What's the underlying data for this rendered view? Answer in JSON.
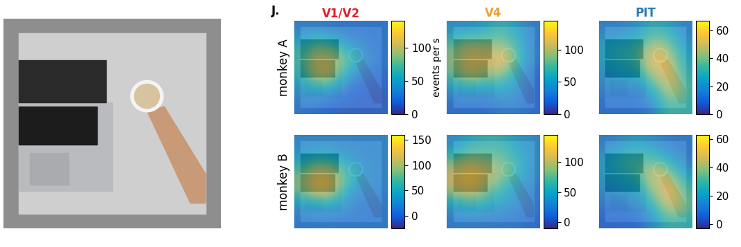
{
  "panel_label": "J.",
  "chart_data": [
    {
      "type": "heatmap",
      "title": "V1/V2",
      "color": "#e0202a",
      "ylabel": "monkey A",
      "tick_labels": false,
      "colorbar_label": "events per s",
      "colorbar_range": [
        0,
        140
      ],
      "colorbar_ticks": [
        0,
        50,
        100
      ],
      "cells": [
        [
          30,
          30,
          25,
          25,
          25,
          25
        ],
        [
          60,
          80,
          70,
          40,
          30,
          25
        ],
        [
          70,
          110,
          100,
          80,
          40,
          25
        ],
        [
          60,
          110,
          100,
          40,
          25,
          20
        ],
        [
          40,
          50,
          40,
          20,
          15,
          15
        ],
        [
          25,
          20,
          15,
          15,
          15,
          15
        ]
      ]
    },
    {
      "type": "heatmap",
      "title": "V4",
      "color": "#f0a030",
      "tick_labels": false,
      "colorbar_range": [
        0,
        145
      ],
      "colorbar_ticks": [
        0,
        50,
        100
      ],
      "cells": [
        [
          40,
          40,
          50,
          70,
          50,
          30
        ],
        [
          80,
          100,
          90,
          90,
          70,
          30
        ],
        [
          90,
          120,
          110,
          130,
          80,
          30
        ],
        [
          80,
          110,
          90,
          90,
          50,
          20
        ],
        [
          40,
          50,
          40,
          50,
          40,
          20
        ],
        [
          20,
          20,
          20,
          30,
          30,
          20
        ]
      ]
    },
    {
      "type": "heatmap",
      "title": "PIT",
      "color": "#2a7ab8",
      "tick_labels": false,
      "colorbar_range": [
        0,
        67
      ],
      "colorbar_ticks": [
        0,
        20,
        40,
        60
      ],
      "cells": [
        [
          15,
          15,
          20,
          30,
          25,
          15
        ],
        [
          25,
          30,
          30,
          45,
          40,
          20
        ],
        [
          25,
          30,
          35,
          60,
          50,
          25
        ],
        [
          20,
          25,
          25,
          45,
          55,
          30
        ],
        [
          15,
          15,
          15,
          25,
          50,
          35
        ],
        [
          10,
          10,
          10,
          15,
          35,
          30
        ]
      ]
    },
    {
      "type": "heatmap",
      "ylabel": "monkey B",
      "tick_labels": false,
      "colorbar_range": [
        -25,
        160
      ],
      "colorbar_ticks": [
        0,
        50,
        100,
        150
      ],
      "cells": [
        [
          20,
          20,
          20,
          20,
          20,
          20
        ],
        [
          40,
          60,
          50,
          30,
          20,
          20
        ],
        [
          80,
          130,
          110,
          70,
          30,
          20
        ],
        [
          90,
          140,
          120,
          40,
          20,
          20
        ],
        [
          30,
          40,
          40,
          20,
          10,
          10
        ],
        [
          10,
          10,
          10,
          10,
          10,
          10
        ]
      ]
    },
    {
      "type": "heatmap",
      "tick_labels": false,
      "colorbar_range": [
        -10,
        145
      ],
      "colorbar_ticks": [
        0,
        50,
        100
      ],
      "cells": [
        [
          30,
          50,
          60,
          60,
          40,
          30
        ],
        [
          70,
          90,
          80,
          80,
          60,
          30
        ],
        [
          110,
          130,
          110,
          90,
          60,
          30
        ],
        [
          100,
          120,
          90,
          60,
          40,
          20
        ],
        [
          40,
          60,
          50,
          40,
          30,
          20
        ],
        [
          20,
          20,
          20,
          20,
          20,
          10
        ]
      ]
    },
    {
      "type": "heatmap",
      "tick_labels": false,
      "colorbar_range": [
        -3,
        63
      ],
      "colorbar_ticks": [
        0,
        20,
        40,
        60
      ],
      "cells": [
        [
          10,
          15,
          20,
          15,
          10,
          10
        ],
        [
          20,
          30,
          30,
          30,
          20,
          10
        ],
        [
          20,
          25,
          30,
          50,
          40,
          20
        ],
        [
          15,
          20,
          20,
          40,
          55,
          30
        ],
        [
          10,
          10,
          15,
          25,
          50,
          35
        ],
        [
          5,
          5,
          5,
          15,
          30,
          25
        ]
      ]
    }
  ]
}
